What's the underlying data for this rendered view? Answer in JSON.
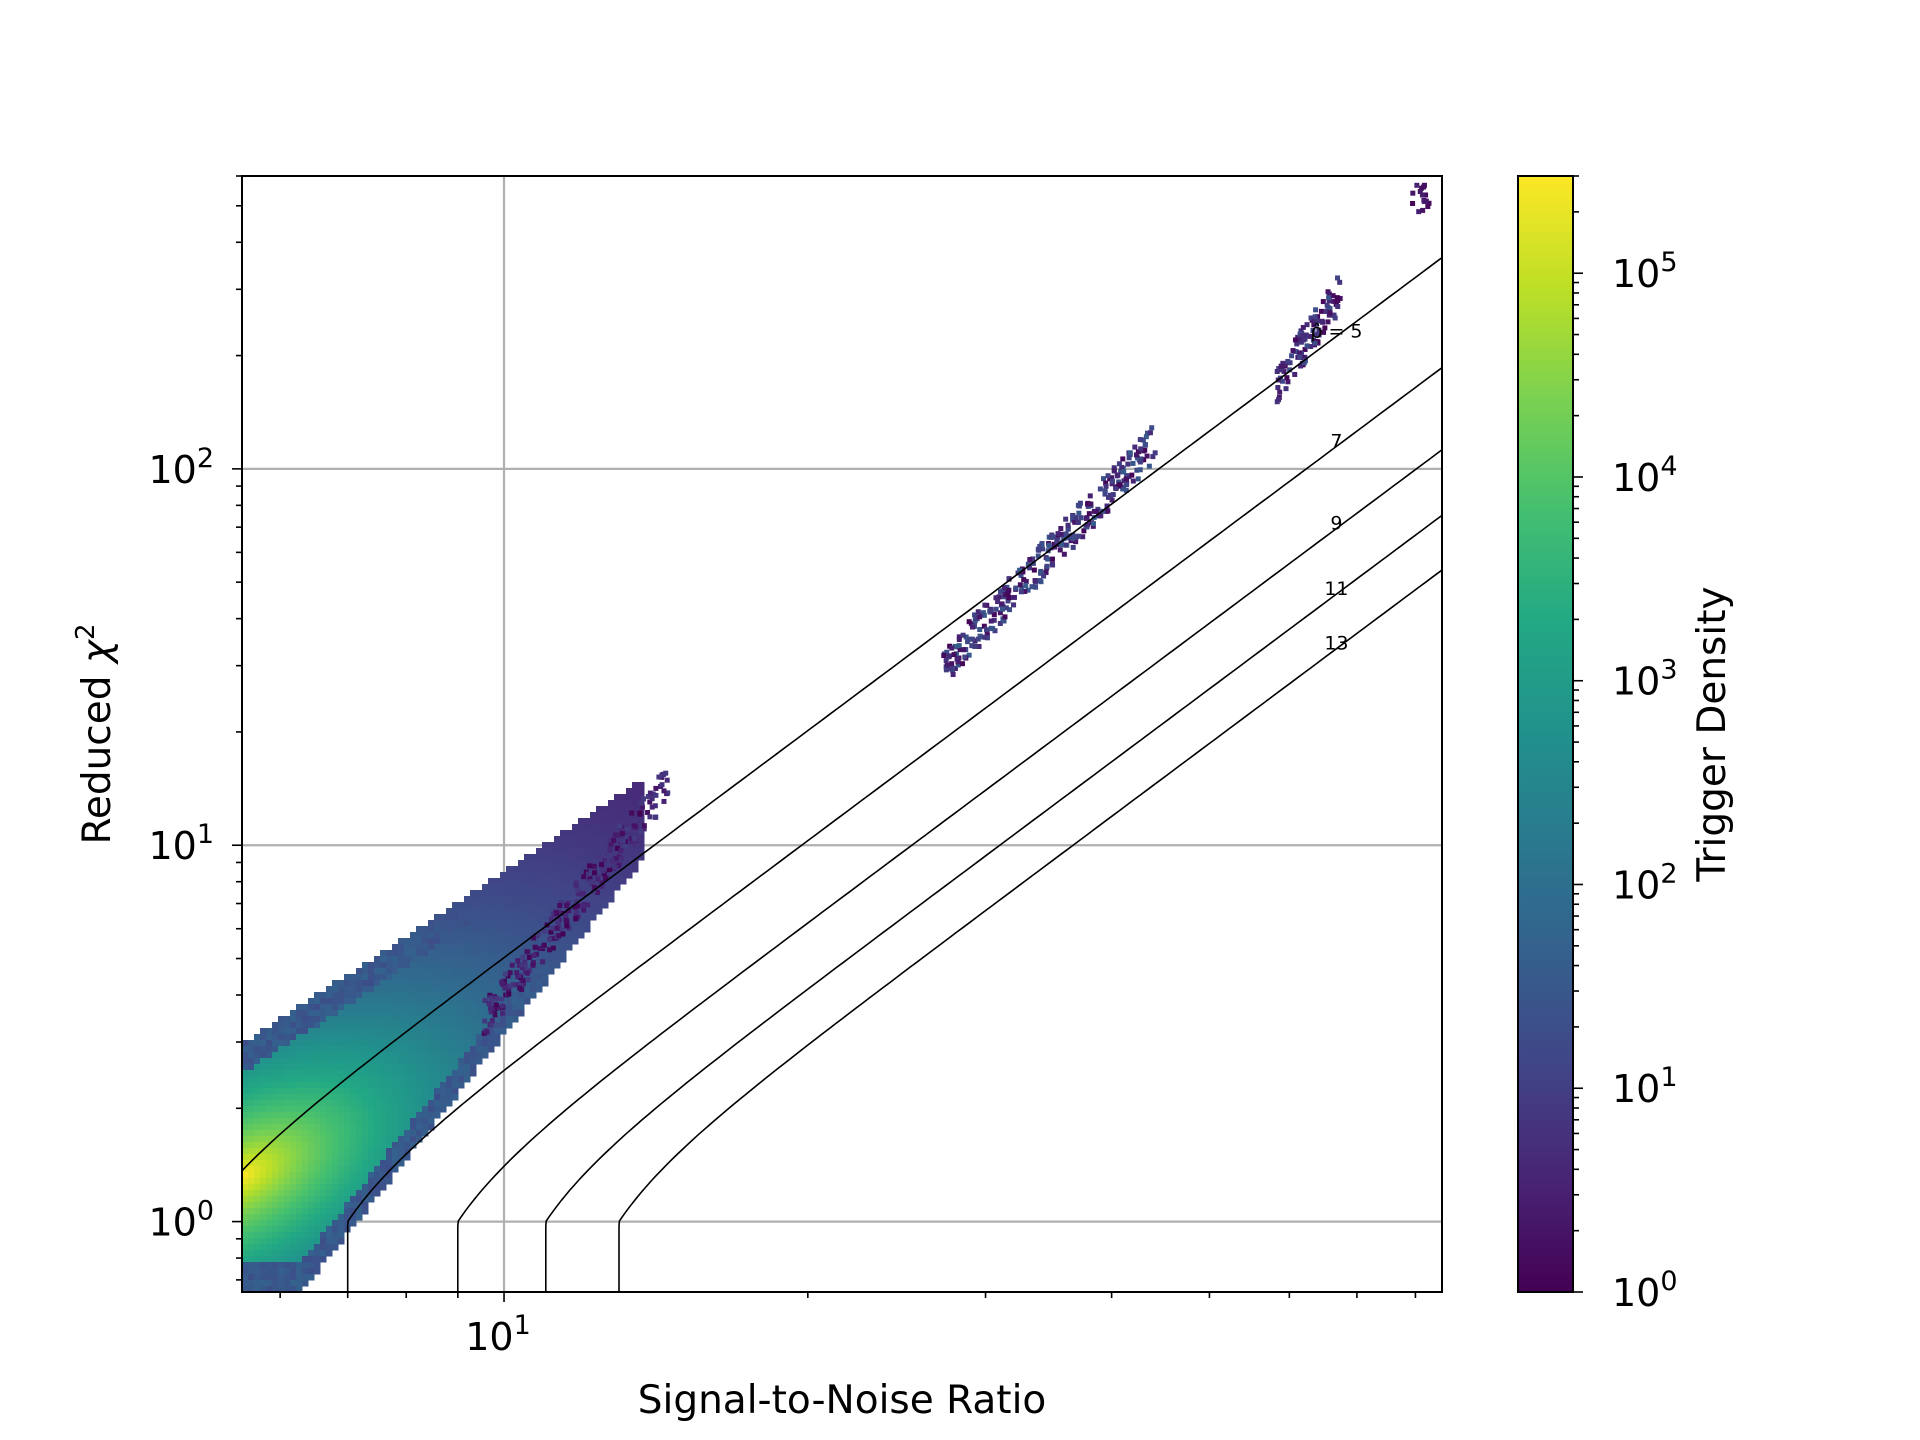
{
  "chart_data": {
    "type": "heatmap",
    "title": "",
    "xlabel": "Signal-to-Noise Ratio",
    "ylabel_text": "Reduced ",
    "ylabel_symbol": "χ",
    "ylabel_sup": "2",
    "x_scale": "log",
    "y_scale": "log",
    "xlim": [
      5.5,
      85
    ],
    "ylim": [
      0.65,
      600
    ],
    "grid": true,
    "x_ticks": [
      {
        "value": 10,
        "base": "10",
        "exp": "1"
      }
    ],
    "y_ticks": [
      {
        "value": 1,
        "base": "10",
        "exp": "0"
      },
      {
        "value": 10,
        "base": "10",
        "exp": "1"
      },
      {
        "value": 100,
        "base": "10",
        "exp": "2"
      }
    ],
    "colorbar": {
      "label": "Trigger Density",
      "scale": "log",
      "range": [
        1,
        300000
      ],
      "colormap": "viridis",
      "ticks": [
        {
          "value": 1,
          "base": "10",
          "exp": "0"
        },
        {
          "value": 10,
          "base": "10",
          "exp": "1"
        },
        {
          "value": 100,
          "base": "10",
          "exp": "2"
        },
        {
          "value": 1000,
          "base": "10",
          "exp": "3"
        },
        {
          "value": 10000,
          "base": "10",
          "exp": "4"
        },
        {
          "value": 100000,
          "base": "10",
          "exp": "5"
        }
      ]
    },
    "contours": [
      {
        "rho": 5,
        "label": "ρ̂ = 5"
      },
      {
        "rho": 7,
        "label": "7"
      },
      {
        "rho": 9,
        "label": "9"
      },
      {
        "rho": 11,
        "label": "11"
      },
      {
        "rho": 13,
        "label": "13"
      }
    ],
    "density_regions": [
      {
        "name": "main-cluster",
        "snr_range": [
          5.5,
          14.5
        ],
        "chisq_range": [
          0.65,
          15
        ],
        "peak_density": 300000
      },
      {
        "name": "cluster-30-60",
        "snr_range": [
          27,
          44
        ],
        "chisq_range": [
          30,
          120
        ],
        "peak_density": 100
      },
      {
        "name": "cluster-80-200",
        "snr_range": [
          58,
          67
        ],
        "chisq_range": [
          170,
          300
        ],
        "peak_density": 50
      },
      {
        "name": "cluster-500",
        "snr_range": [
          79,
          83
        ],
        "chisq_range": [
          510,
          580
        ],
        "peak_density": 10
      }
    ]
  }
}
